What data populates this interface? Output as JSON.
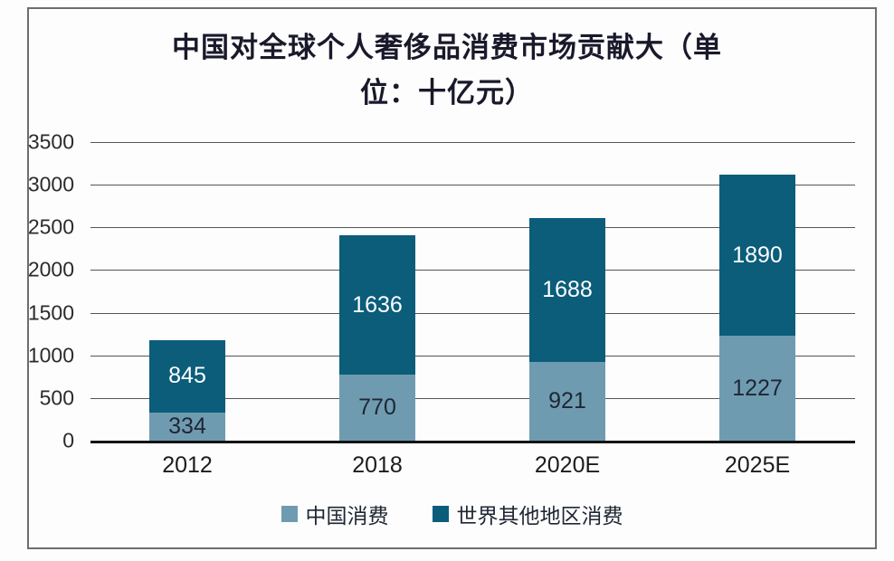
{
  "title": {
    "lines": [
      "中国对全球个人奢侈品消费市场贡献大（单",
      "位：十亿元）"
    ],
    "full": "中国对全球个人奢侈品消费市场贡献大（单位：十亿元）"
  },
  "chart_data": {
    "type": "bar",
    "stacked": true,
    "title": "中国对全球个人奢侈品消费市场贡献大（单位：十亿元）",
    "categories": [
      "2012",
      "2018",
      "2020E",
      "2025E"
    ],
    "series": [
      {
        "key": "china-consumption",
        "name": "中国消费",
        "values": [
          334,
          770,
          921,
          1227
        ],
        "color": "#6f9bb1",
        "label_color": "#1f2633"
      },
      {
        "key": "world-other-consumption",
        "name": "世界其他地区消费",
        "values": [
          845,
          1636,
          1688,
          1890
        ],
        "color": "#0b5d7a",
        "label_color": "#ffffff"
      }
    ],
    "totals": [
      1179,
      2406,
      2609,
      3117
    ],
    "xlabel": "",
    "ylabel": "",
    "ylim": [
      0,
      3500
    ],
    "yticks": [
      0,
      500,
      1000,
      1500,
      2000,
      2500,
      3000,
      3500
    ],
    "grid": true,
    "legend_position": "bottom"
  },
  "style": {
    "gridline_color": "#565656",
    "axis_line_color": "#141414",
    "frame_border_color": "#6e6e6e",
    "title_color": "#19192b",
    "tick_label_color": "#2b2b2b",
    "background": "#fdfdfd"
  }
}
